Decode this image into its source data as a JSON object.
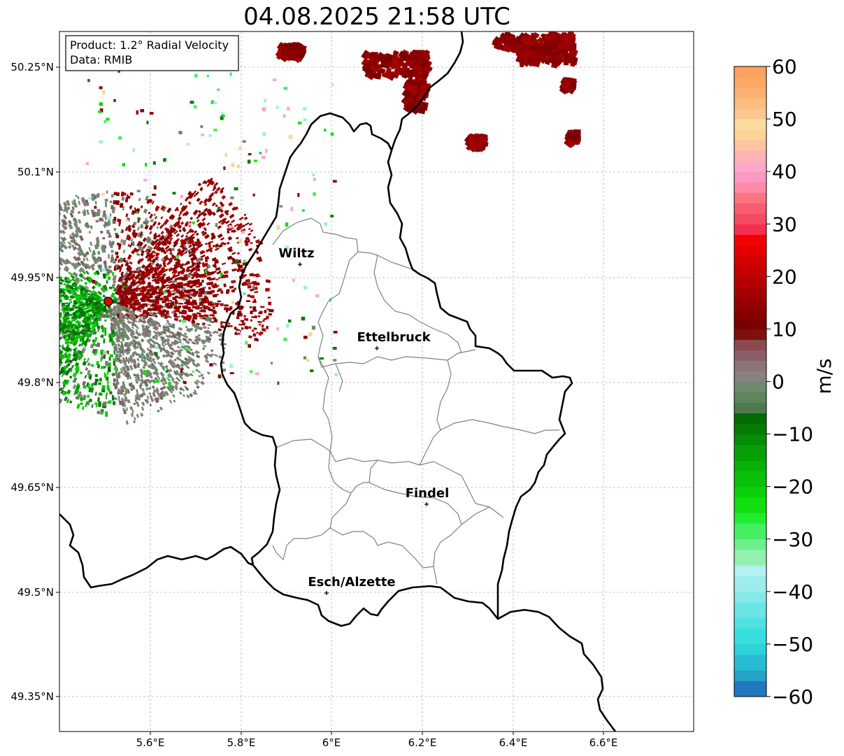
{
  "title": "04.08.2025 21:58 UTC",
  "info_box": {
    "product": "Product: 1.2° Radial Velocity",
    "data": "Data: RMIB"
  },
  "axes": {
    "lat_labels": [
      "50.25°N",
      "50.1°N",
      "49.95°N",
      "49.8°N",
      "49.65°N",
      "49.5°N",
      "49.35°N"
    ],
    "lon_labels": [
      "5.6°E",
      "5.8°E",
      "6°E",
      "6.2°E",
      "6.4°E",
      "6.6°E"
    ]
  },
  "cities": [
    {
      "name": "Wiltz"
    },
    {
      "name": "Ettelbruck"
    },
    {
      "name": "Findel"
    },
    {
      "name": "Esch/Alzette"
    }
  ],
  "colorbar": {
    "unit": "m/s",
    "ticks": [
      "60",
      "50",
      "40",
      "30",
      "20",
      "10",
      "0",
      "−10",
      "−20",
      "−30",
      "−40",
      "−50",
      "−60"
    ],
    "min": -60,
    "max": 60
  },
  "colors": {
    "border": "#000000",
    "cantons": "#808080",
    "radar_site": "#e00000"
  }
}
